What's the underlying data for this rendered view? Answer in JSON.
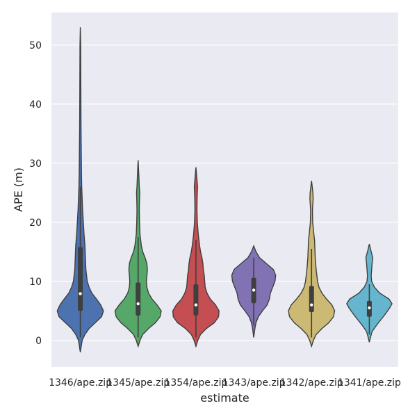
{
  "chart_data": {
    "type": "violin",
    "title": "",
    "xlabel": "estimate",
    "ylabel": "APE (m)",
    "ylim": [
      -4.5,
      55.5
    ],
    "yticks": [
      0,
      10,
      20,
      30,
      40,
      50
    ],
    "grid": true,
    "categories": [
      "1346/ape.zip",
      "1345/ape.zip",
      "1354/ape.zip",
      "1343/ape.zip",
      "1342/ape.zip",
      "1341/ape.zip"
    ],
    "colors": [
      "#4c72b0",
      "#55a868",
      "#c44e52",
      "#8172b3",
      "#ccb974",
      "#64b5cd"
    ],
    "series": [
      {
        "category": "1346/ape.zip",
        "min": -2.0,
        "max": 53.0,
        "q1": 5.0,
        "median": 7.9,
        "q3": 15.8,
        "whisker_low": 0.5,
        "whisker_high": 26.0,
        "density": [
          [
            -2,
            0.0
          ],
          [
            0,
            0.08
          ],
          [
            1,
            0.2
          ],
          [
            2,
            0.38
          ],
          [
            3,
            0.65
          ],
          [
            4,
            0.92
          ],
          [
            5,
            1.0
          ],
          [
            6,
            0.88
          ],
          [
            7,
            0.7
          ],
          [
            8,
            0.5
          ],
          [
            9,
            0.38
          ],
          [
            10,
            0.3
          ],
          [
            12,
            0.24
          ],
          [
            14,
            0.22
          ],
          [
            16,
            0.2
          ],
          [
            18,
            0.16
          ],
          [
            20,
            0.13
          ],
          [
            22,
            0.1
          ],
          [
            24,
            0.08
          ],
          [
            26,
            0.06
          ],
          [
            28,
            0.05
          ],
          [
            30,
            0.045
          ],
          [
            32,
            0.04
          ],
          [
            34,
            0.035
          ],
          [
            36,
            0.03
          ],
          [
            40,
            0.025
          ],
          [
            45,
            0.02
          ],
          [
            50,
            0.015
          ],
          [
            53,
            0.0
          ]
        ]
      },
      {
        "category": "1345/ape.zip",
        "min": -1.0,
        "max": 30.5,
        "q1": 4.2,
        "median": 6.2,
        "q3": 9.8,
        "whisker_low": 0.5,
        "whisker_high": 17.5,
        "density": [
          [
            -1,
            0.0
          ],
          [
            0,
            0.08
          ],
          [
            1,
            0.2
          ],
          [
            2,
            0.45
          ],
          [
            3,
            0.75
          ],
          [
            4,
            0.95
          ],
          [
            5,
            1.0
          ],
          [
            6,
            0.82
          ],
          [
            7,
            0.6
          ],
          [
            8,
            0.45
          ],
          [
            9,
            0.38
          ],
          [
            10,
            0.36
          ],
          [
            11,
            0.38
          ],
          [
            12,
            0.4
          ],
          [
            13,
            0.38
          ],
          [
            14,
            0.3
          ],
          [
            15,
            0.2
          ],
          [
            16,
            0.14
          ],
          [
            18,
            0.08
          ],
          [
            20,
            0.06
          ],
          [
            22,
            0.05
          ],
          [
            24,
            0.06
          ],
          [
            25,
            0.07
          ],
          [
            26,
            0.05
          ],
          [
            28,
            0.03
          ],
          [
            30.5,
            0.0
          ]
        ]
      },
      {
        "category": "1354/ape.zip",
        "min": -1.0,
        "max": 29.3,
        "q1": 4.2,
        "median": 6.0,
        "q3": 9.5,
        "whisker_low": 0.5,
        "whisker_high": 17.0,
        "density": [
          [
            -1,
            0.0
          ],
          [
            0,
            0.08
          ],
          [
            1,
            0.2
          ],
          [
            2,
            0.45
          ],
          [
            3,
            0.8
          ],
          [
            4,
            0.98
          ],
          [
            5,
            1.0
          ],
          [
            6,
            0.85
          ],
          [
            7,
            0.62
          ],
          [
            8,
            0.48
          ],
          [
            9,
            0.4
          ],
          [
            10,
            0.38
          ],
          [
            11,
            0.36
          ],
          [
            12,
            0.32
          ],
          [
            13,
            0.3
          ],
          [
            14,
            0.26
          ],
          [
            15,
            0.2
          ],
          [
            16,
            0.16
          ],
          [
            18,
            0.1
          ],
          [
            20,
            0.06
          ],
          [
            22,
            0.045
          ],
          [
            24,
            0.05
          ],
          [
            26,
            0.07
          ],
          [
            27,
            0.05
          ],
          [
            29.3,
            0.0
          ]
        ]
      },
      {
        "category": "1343/ape.zip",
        "min": 0.5,
        "max": 16.0,
        "q1": 6.3,
        "median": 8.5,
        "q3": 10.6,
        "whisker_low": 2.5,
        "whisker_high": 14.0,
        "density": [
          [
            0.5,
            0.0
          ],
          [
            2,
            0.05
          ],
          [
            3,
            0.1
          ],
          [
            4,
            0.2
          ],
          [
            5,
            0.38
          ],
          [
            6,
            0.58
          ],
          [
            7,
            0.68
          ],
          [
            8,
            0.72
          ],
          [
            9,
            0.82
          ],
          [
            10,
            0.92
          ],
          [
            11,
            0.95
          ],
          [
            12,
            0.85
          ],
          [
            13,
            0.55
          ],
          [
            14,
            0.25
          ],
          [
            15,
            0.1
          ],
          [
            16,
            0.0
          ]
        ]
      },
      {
        "category": "1342/ape.zip",
        "min": -1.0,
        "max": 27.0,
        "q1": 4.8,
        "median": 6.0,
        "q3": 9.2,
        "whisker_low": 0.5,
        "whisker_high": 15.5,
        "density": [
          [
            -1,
            0.0
          ],
          [
            0,
            0.08
          ],
          [
            1,
            0.2
          ],
          [
            2,
            0.45
          ],
          [
            3,
            0.75
          ],
          [
            4,
            0.95
          ],
          [
            5,
            1.0
          ],
          [
            6,
            0.88
          ],
          [
            7,
            0.65
          ],
          [
            8,
            0.45
          ],
          [
            9,
            0.32
          ],
          [
            10,
            0.26
          ],
          [
            12,
            0.2
          ],
          [
            14,
            0.16
          ],
          [
            16,
            0.14
          ],
          [
            17,
            0.13
          ],
          [
            18,
            0.1
          ],
          [
            20,
            0.05
          ],
          [
            22,
            0.04
          ],
          [
            24,
            0.07
          ],
          [
            25,
            0.06
          ],
          [
            27,
            0.0
          ]
        ]
      },
      {
        "category": "1341/ape.zip",
        "min": -0.3,
        "max": 16.3,
        "q1": 4.0,
        "median": 5.5,
        "q3": 6.7,
        "whisker_low": 1.0,
        "whisker_high": 9.5,
        "density": [
          [
            -0.3,
            0.0
          ],
          [
            0.5,
            0.05
          ],
          [
            1.5,
            0.12
          ],
          [
            2.5,
            0.3
          ],
          [
            3.5,
            0.5
          ],
          [
            4.5,
            0.7
          ],
          [
            5.5,
            0.88
          ],
          [
            6.2,
            0.98
          ],
          [
            7,
            0.85
          ],
          [
            8,
            0.45
          ],
          [
            9,
            0.22
          ],
          [
            10,
            0.1
          ],
          [
            11,
            0.08
          ],
          [
            12,
            0.1
          ],
          [
            13,
            0.12
          ],
          [
            14,
            0.15
          ],
          [
            15,
            0.08
          ],
          [
            16.3,
            0.0
          ]
        ]
      }
    ]
  }
}
